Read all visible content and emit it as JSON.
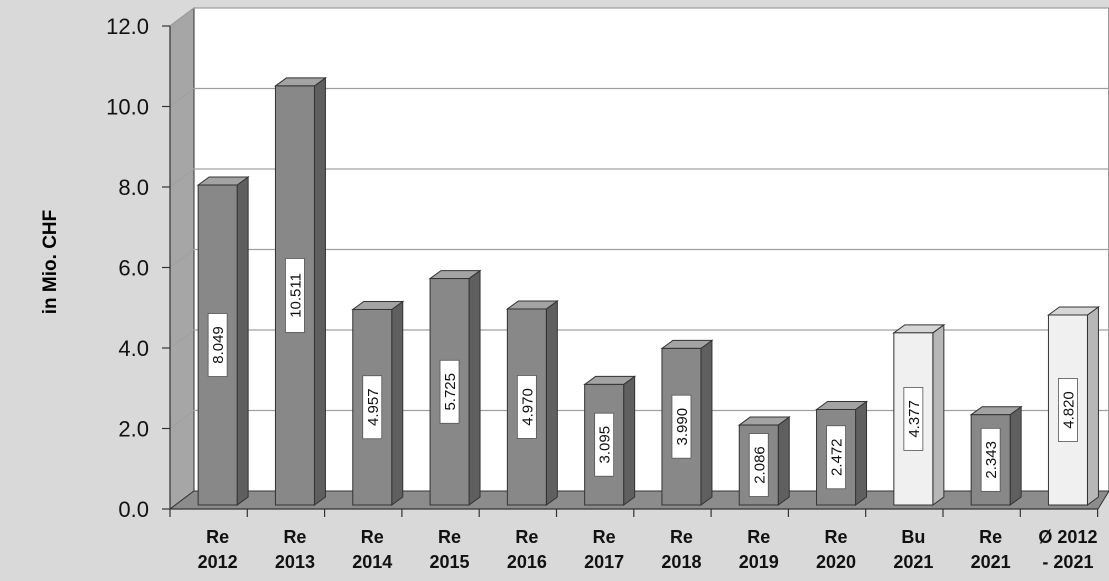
{
  "chart_data": {
    "type": "bar",
    "title": "",
    "ylabel": "in Mio. CHF",
    "xlabel": "",
    "ylim": [
      0,
      12
    ],
    "yticks": [
      "0.0",
      "2.0",
      "4.0",
      "6.0",
      "8.0",
      "10.0",
      "12.0"
    ],
    "ytick_values": [
      0,
      2,
      4,
      6,
      8,
      10,
      12
    ],
    "grid": true,
    "categories": [
      [
        "Re",
        "2012"
      ],
      [
        "Re",
        "2013"
      ],
      [
        "Re",
        "2014"
      ],
      [
        "Re",
        "2015"
      ],
      [
        "Re",
        "2016"
      ],
      [
        "Re",
        "2017"
      ],
      [
        "Re",
        "2018"
      ],
      [
        "Re",
        "2019"
      ],
      [
        "Re",
        "2020"
      ],
      [
        "Bu",
        "2021"
      ],
      [
        "Re",
        "2021"
      ],
      [
        "Ø 2012",
        "- 2021"
      ]
    ],
    "values": [
      8.049,
      10.511,
      4.957,
      5.725,
      4.97,
      3.095,
      3.99,
      2.086,
      2.472,
      4.377,
      2.343,
      4.82
    ],
    "data_labels": [
      "8.049",
      "10.511",
      "4.957",
      "5.725",
      "4.970",
      "3.095",
      "3.990",
      "2.086",
      "2.472",
      "4.377",
      "2.343",
      "4.820"
    ],
    "bar_kind": [
      "dark",
      "dark",
      "dark",
      "dark",
      "dark",
      "dark",
      "dark",
      "dark",
      "dark",
      "light",
      "dark",
      "light"
    ],
    "colors": {
      "background": "#d9d9d9",
      "plot_back": "#ffffff",
      "plot_side": "#a6a6a6",
      "floor": "#8c8c8c",
      "gridline": "#a0a0a0",
      "dark_front": "#888888",
      "dark_top": "#a3a3a3",
      "dark_side": "#5f5f5f",
      "light_front": "#f0f0f0",
      "light_top": "#d6d6d6",
      "light_side": "#b7b7b7",
      "outline": "#333333",
      "text": "#111111"
    }
  }
}
